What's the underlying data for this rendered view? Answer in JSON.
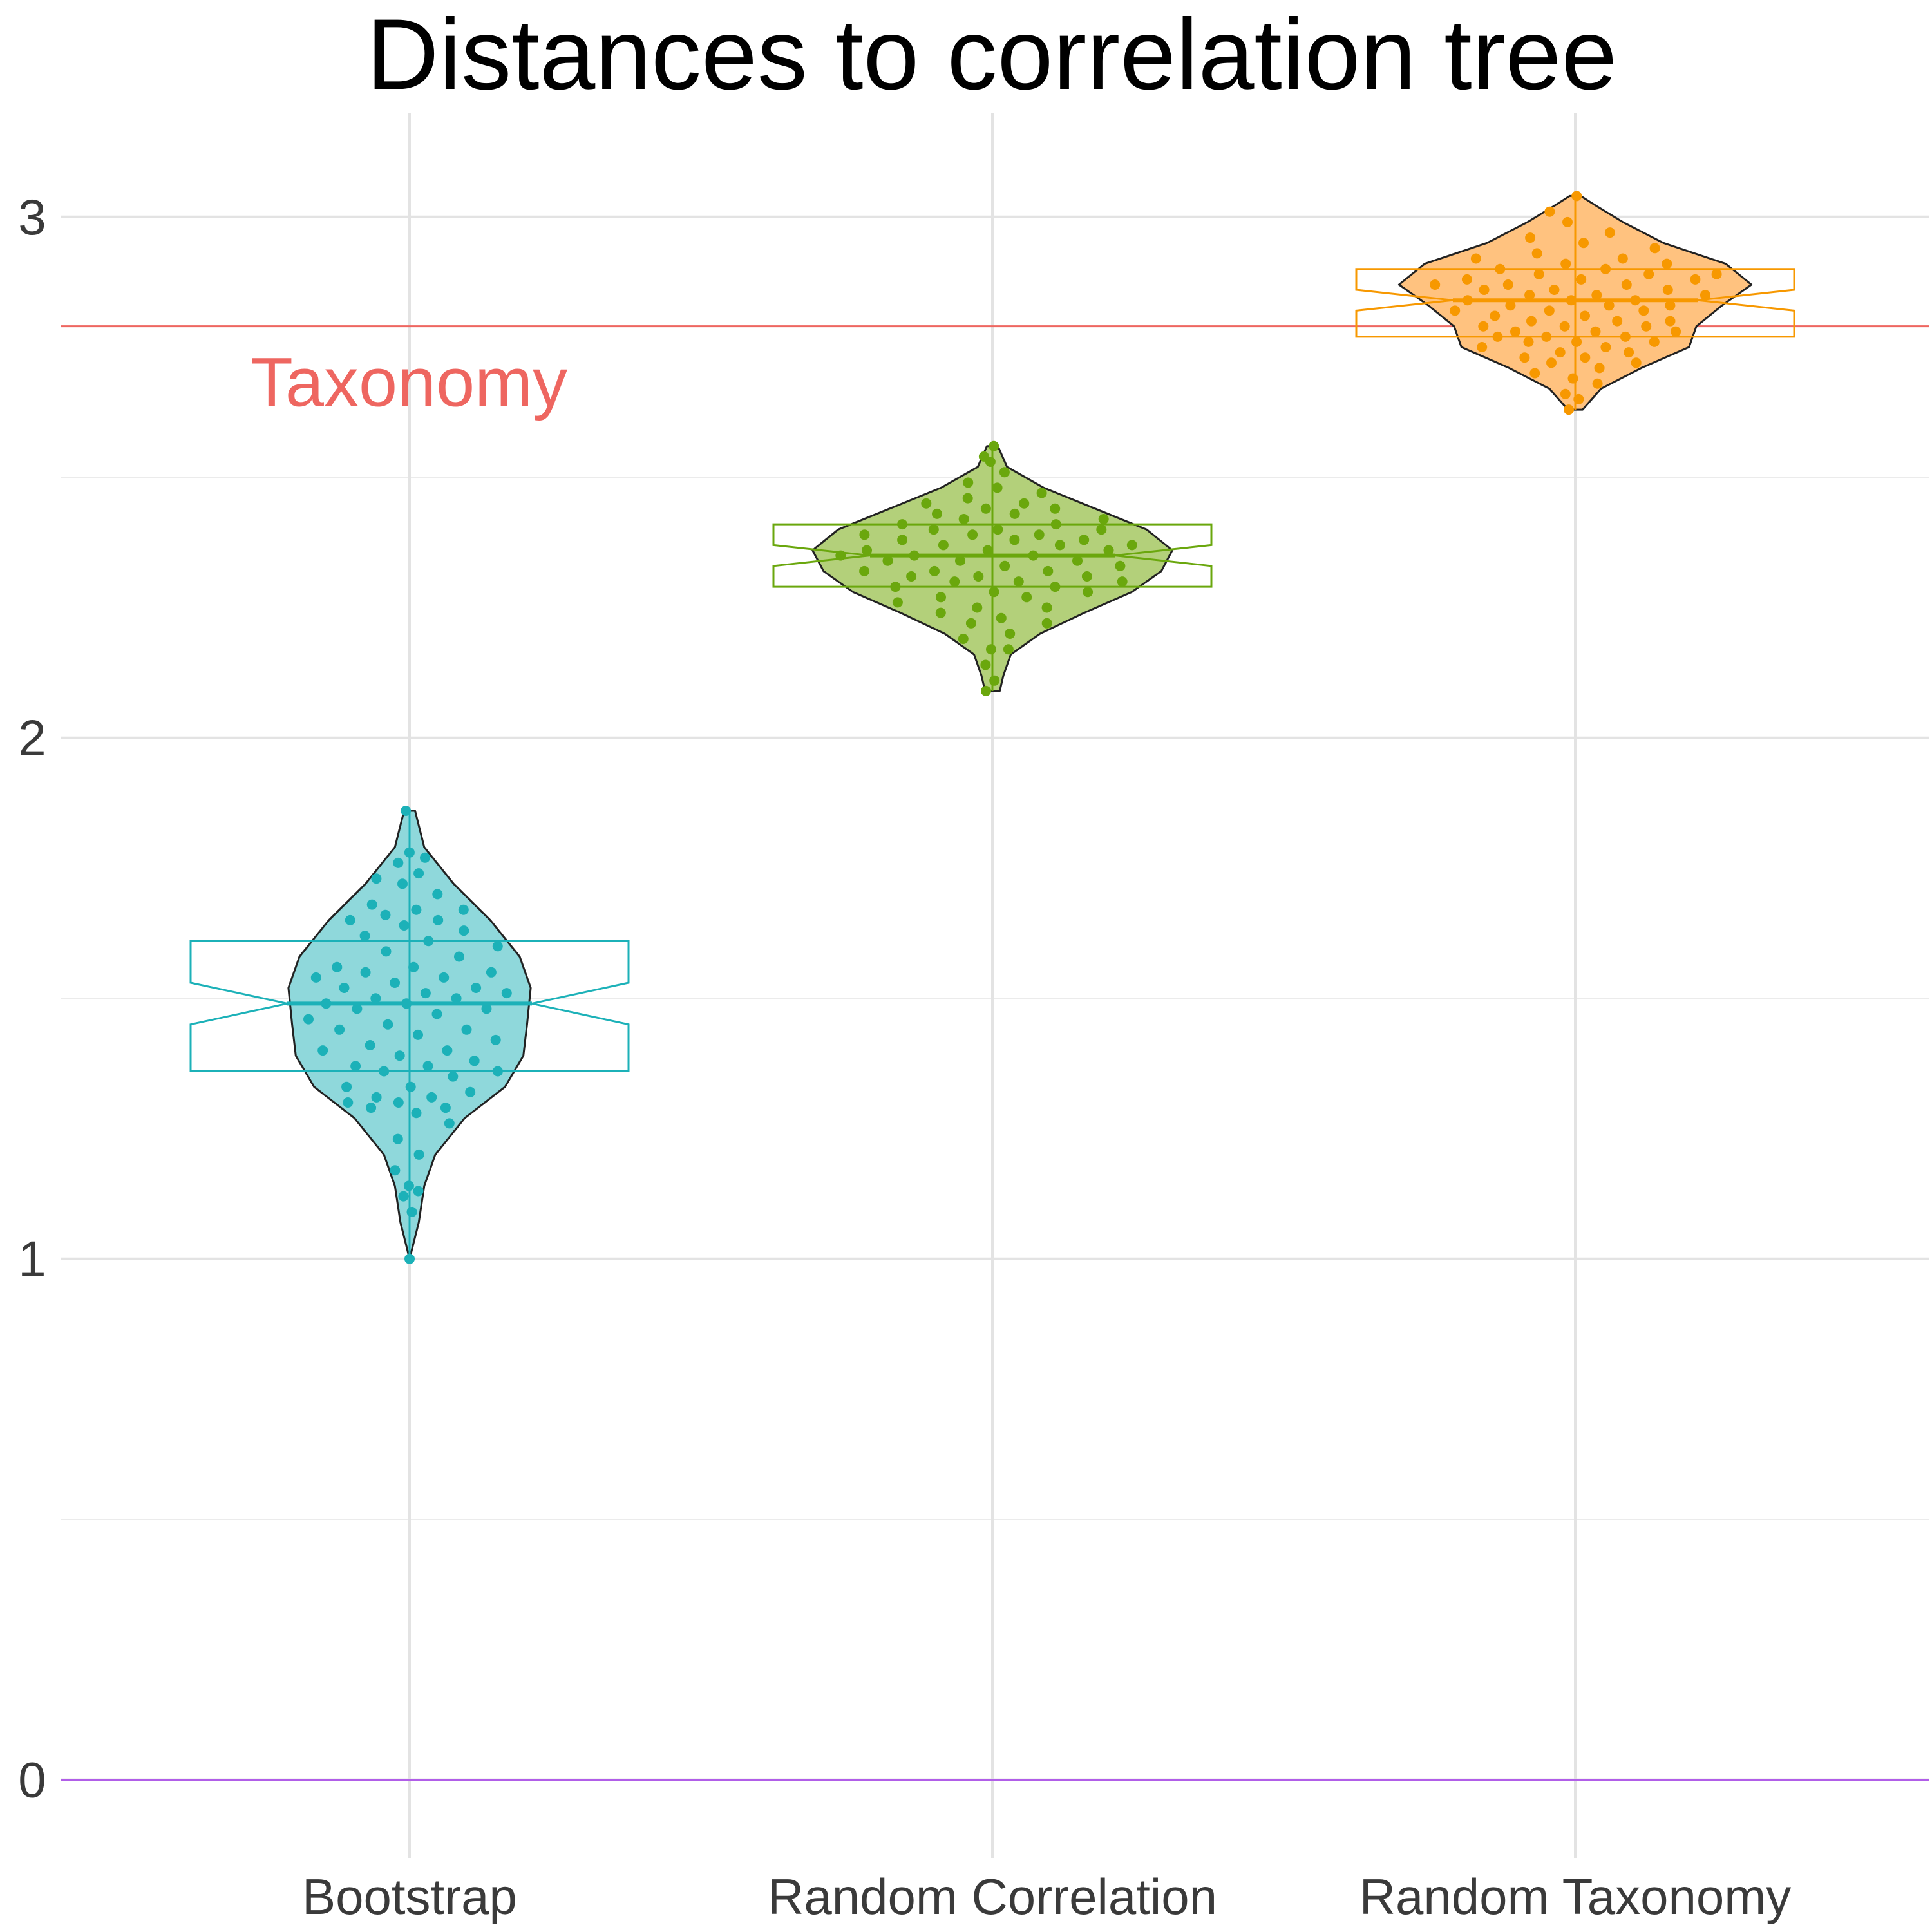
{
  "chart_data": {
    "type": "violin",
    "title": "Distances to correlation tree",
    "xlabel": "",
    "ylabel": "",
    "categories": [
      "Bootstrap",
      "Random Correlation",
      "Random Taxonomy"
    ],
    "ylim": [
      -0.15,
      3.2
    ],
    "yticks": [
      0,
      1,
      2,
      3
    ],
    "grid": true,
    "legend": "none",
    "reference_lines": [
      {
        "label": "Taxonomy",
        "value": 2.79,
        "color": "#ee6660"
      },
      {
        "label": "",
        "value": 0,
        "color": "#b15ee8"
      }
    ],
    "series": [
      {
        "category": "Bootstrap",
        "fill": "#8fd8db",
        "color": "#1cb1b8",
        "min": 1.0,
        "max": 1.86,
        "median": 1.49,
        "q1": 1.36,
        "q3": 1.61,
        "notch_low": 1.45,
        "notch_high": 1.53,
        "density": [
          [
            1.0,
            0.0
          ],
          [
            1.07,
            0.05
          ],
          [
            1.14,
            0.08
          ],
          [
            1.2,
            0.14
          ],
          [
            1.27,
            0.3
          ],
          [
            1.33,
            0.52
          ],
          [
            1.39,
            0.62
          ],
          [
            1.45,
            0.64
          ],
          [
            1.52,
            0.66
          ],
          [
            1.58,
            0.6
          ],
          [
            1.65,
            0.44
          ],
          [
            1.72,
            0.24
          ],
          [
            1.79,
            0.08
          ],
          [
            1.86,
            0.03
          ]
        ],
        "points": [
          1.0,
          1.09,
          1.12,
          1.13,
          1.14,
          1.17,
          1.2,
          1.23,
          1.26,
          1.28,
          1.29,
          1.29,
          1.3,
          1.3,
          1.31,
          1.31,
          1.32,
          1.33,
          1.33,
          1.35,
          1.36,
          1.36,
          1.37,
          1.37,
          1.38,
          1.39,
          1.4,
          1.4,
          1.41,
          1.42,
          1.43,
          1.44,
          1.44,
          1.45,
          1.46,
          1.47,
          1.48,
          1.48,
          1.49,
          1.49,
          1.5,
          1.5,
          1.51,
          1.51,
          1.52,
          1.52,
          1.53,
          1.54,
          1.54,
          1.55,
          1.55,
          1.56,
          1.56,
          1.58,
          1.59,
          1.6,
          1.61,
          1.62,
          1.63,
          1.64,
          1.65,
          1.65,
          1.66,
          1.67,
          1.67,
          1.68,
          1.7,
          1.72,
          1.73,
          1.74,
          1.76,
          1.77,
          1.78,
          1.86
        ]
      },
      {
        "category": "Random Correlation",
        "fill": "#b3d07a",
        "color": "#6aa70d",
        "min": 2.09,
        "max": 2.56,
        "median": 2.35,
        "q1": 2.29,
        "q3": 2.41,
        "notch_low": 2.33,
        "notch_high": 2.37,
        "density": [
          [
            2.09,
            0.04
          ],
          [
            2.12,
            0.06
          ],
          [
            2.16,
            0.1
          ],
          [
            2.2,
            0.26
          ],
          [
            2.24,
            0.5
          ],
          [
            2.28,
            0.76
          ],
          [
            2.32,
            0.92
          ],
          [
            2.36,
            0.98
          ],
          [
            2.4,
            0.84
          ],
          [
            2.44,
            0.56
          ],
          [
            2.48,
            0.28
          ],
          [
            2.52,
            0.08
          ],
          [
            2.56,
            0.03
          ]
        ],
        "points": [
          2.09,
          2.11,
          2.14,
          2.17,
          2.17,
          2.19,
          2.2,
          2.22,
          2.22,
          2.23,
          2.24,
          2.25,
          2.25,
          2.26,
          2.27,
          2.27,
          2.28,
          2.28,
          2.29,
          2.29,
          2.3,
          2.3,
          2.3,
          2.31,
          2.31,
          2.31,
          2.32,
          2.32,
          2.32,
          2.33,
          2.33,
          2.34,
          2.34,
          2.34,
          2.35,
          2.35,
          2.35,
          2.36,
          2.36,
          2.36,
          2.37,
          2.37,
          2.37,
          2.38,
          2.38,
          2.38,
          2.39,
          2.39,
          2.39,
          2.4,
          2.4,
          2.4,
          2.41,
          2.41,
          2.42,
          2.42,
          2.43,
          2.43,
          2.44,
          2.44,
          2.45,
          2.45,
          2.46,
          2.47,
          2.48,
          2.49,
          2.51,
          2.53,
          2.54,
          2.56
        ]
      },
      {
        "category": "Random Taxonomy",
        "fill": "#ffc27f",
        "color": "#f79800",
        "min": 2.63,
        "max": 3.04,
        "median": 2.84,
        "q1": 2.77,
        "q3": 2.9,
        "notch_low": 2.82,
        "notch_high": 2.86,
        "density": [
          [
            2.63,
            0.04
          ],
          [
            2.67,
            0.14
          ],
          [
            2.71,
            0.36
          ],
          [
            2.75,
            0.62
          ],
          [
            2.79,
            0.66
          ],
          [
            2.83,
            0.8
          ],
          [
            2.87,
            0.96
          ],
          [
            2.91,
            0.82
          ],
          [
            2.95,
            0.48
          ],
          [
            2.99,
            0.26
          ],
          [
            3.02,
            0.12
          ],
          [
            3.04,
            0.03
          ]
        ],
        "points": [
          2.63,
          2.65,
          2.66,
          2.68,
          2.69,
          2.7,
          2.71,
          2.72,
          2.72,
          2.73,
          2.73,
          2.74,
          2.74,
          2.75,
          2.75,
          2.76,
          2.76,
          2.76,
          2.77,
          2.77,
          2.77,
          2.78,
          2.78,
          2.78,
          2.79,
          2.79,
          2.79,
          2.8,
          2.8,
          2.8,
          2.81,
          2.81,
          2.82,
          2.82,
          2.82,
          2.83,
          2.83,
          2.83,
          2.84,
          2.84,
          2.84,
          2.85,
          2.85,
          2.85,
          2.86,
          2.86,
          2.86,
          2.87,
          2.87,
          2.87,
          2.88,
          2.88,
          2.88,
          2.89,
          2.89,
          2.89,
          2.9,
          2.9,
          2.91,
          2.91,
          2.92,
          2.92,
          2.93,
          2.94,
          2.95,
          2.96,
          2.97,
          2.99,
          3.01,
          3.04
        ]
      }
    ]
  }
}
